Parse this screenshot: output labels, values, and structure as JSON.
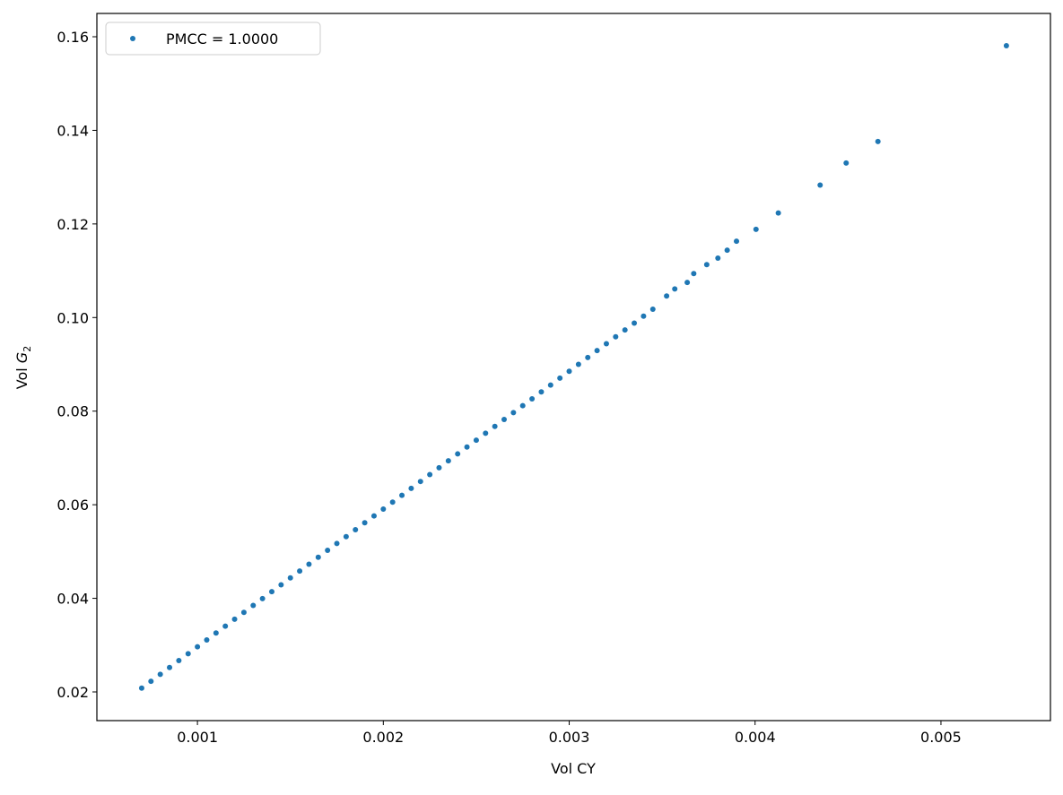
{
  "chart_data": {
    "type": "scatter",
    "xlabel": "Vol CY",
    "ylabel": {
      "text": "Vol ",
      "symbol": "G",
      "subscript": "2"
    },
    "xlim": [
      0.000459,
      0.005589
    ],
    "ylim": [
      0.01387,
      0.16498
    ],
    "xticks": [
      0.001,
      0.002,
      0.003,
      0.004,
      0.005
    ],
    "yticks": [
      0.02,
      0.04,
      0.06,
      0.08,
      {
        "value": 0.1,
        "label": "0.10"
      },
      0.12,
      0.14,
      0.16
    ],
    "legend": "upper left",
    "series": [
      {
        "name": "PMCC = 1.0000",
        "color": "#1f77b4",
        "x": [
          0.0007,
          0.00075,
          0.0008,
          0.00085,
          0.0009,
          0.00095,
          0.001,
          0.00105,
          0.0011,
          0.00115,
          0.0012,
          0.00125,
          0.0013,
          0.00135,
          0.0014,
          0.00145,
          0.0015,
          0.00155,
          0.0016,
          0.00165,
          0.0017,
          0.00175,
          0.0018,
          0.00185,
          0.0019,
          0.00195,
          0.002,
          0.00205,
          0.0021,
          0.00215,
          0.0022,
          0.00225,
          0.0023,
          0.00235,
          0.0024,
          0.00245,
          0.0025,
          0.00255,
          0.0026,
          0.00265,
          0.0027,
          0.00275,
          0.0028,
          0.00285,
          0.0029,
          0.00295,
          0.003,
          0.00305,
          0.0031,
          0.00315,
          0.0032,
          0.00325,
          0.0033,
          0.00335,
          0.0034,
          0.00345,
          0.003524,
          0.003568,
          0.003635,
          0.00367,
          0.00374,
          0.0038,
          0.00385,
          0.0039,
          0.004005,
          0.004125,
          0.00435,
          0.00449,
          0.004661,
          0.005352
        ],
        "values": [
          0.02081,
          0.02228,
          0.02375,
          0.02522,
          0.0267,
          0.02817,
          0.02964,
          0.03111,
          0.03258,
          0.03406,
          0.03553,
          0.037,
          0.03847,
          0.03994,
          0.04142,
          0.04289,
          0.04436,
          0.04583,
          0.0473,
          0.04878,
          0.05025,
          0.05172,
          0.05319,
          0.05466,
          0.05614,
          0.05761,
          0.05908,
          0.06055,
          0.06202,
          0.0635,
          0.06497,
          0.06644,
          0.06791,
          0.06938,
          0.07086,
          0.07233,
          0.0738,
          0.07527,
          0.07674,
          0.07822,
          0.07969,
          0.08116,
          0.08263,
          0.0841,
          0.08558,
          0.08705,
          0.08852,
          0.08999,
          0.09146,
          0.09294,
          0.09441,
          0.09588,
          0.09735,
          0.09882,
          0.1003,
          0.10177,
          0.1046,
          0.1061,
          0.1075,
          0.1094,
          0.1113,
          0.1127,
          0.1144,
          0.1163,
          0.11885,
          0.12234,
          0.1283,
          0.13303,
          0.13762,
          0.15808
        ]
      }
    ]
  }
}
